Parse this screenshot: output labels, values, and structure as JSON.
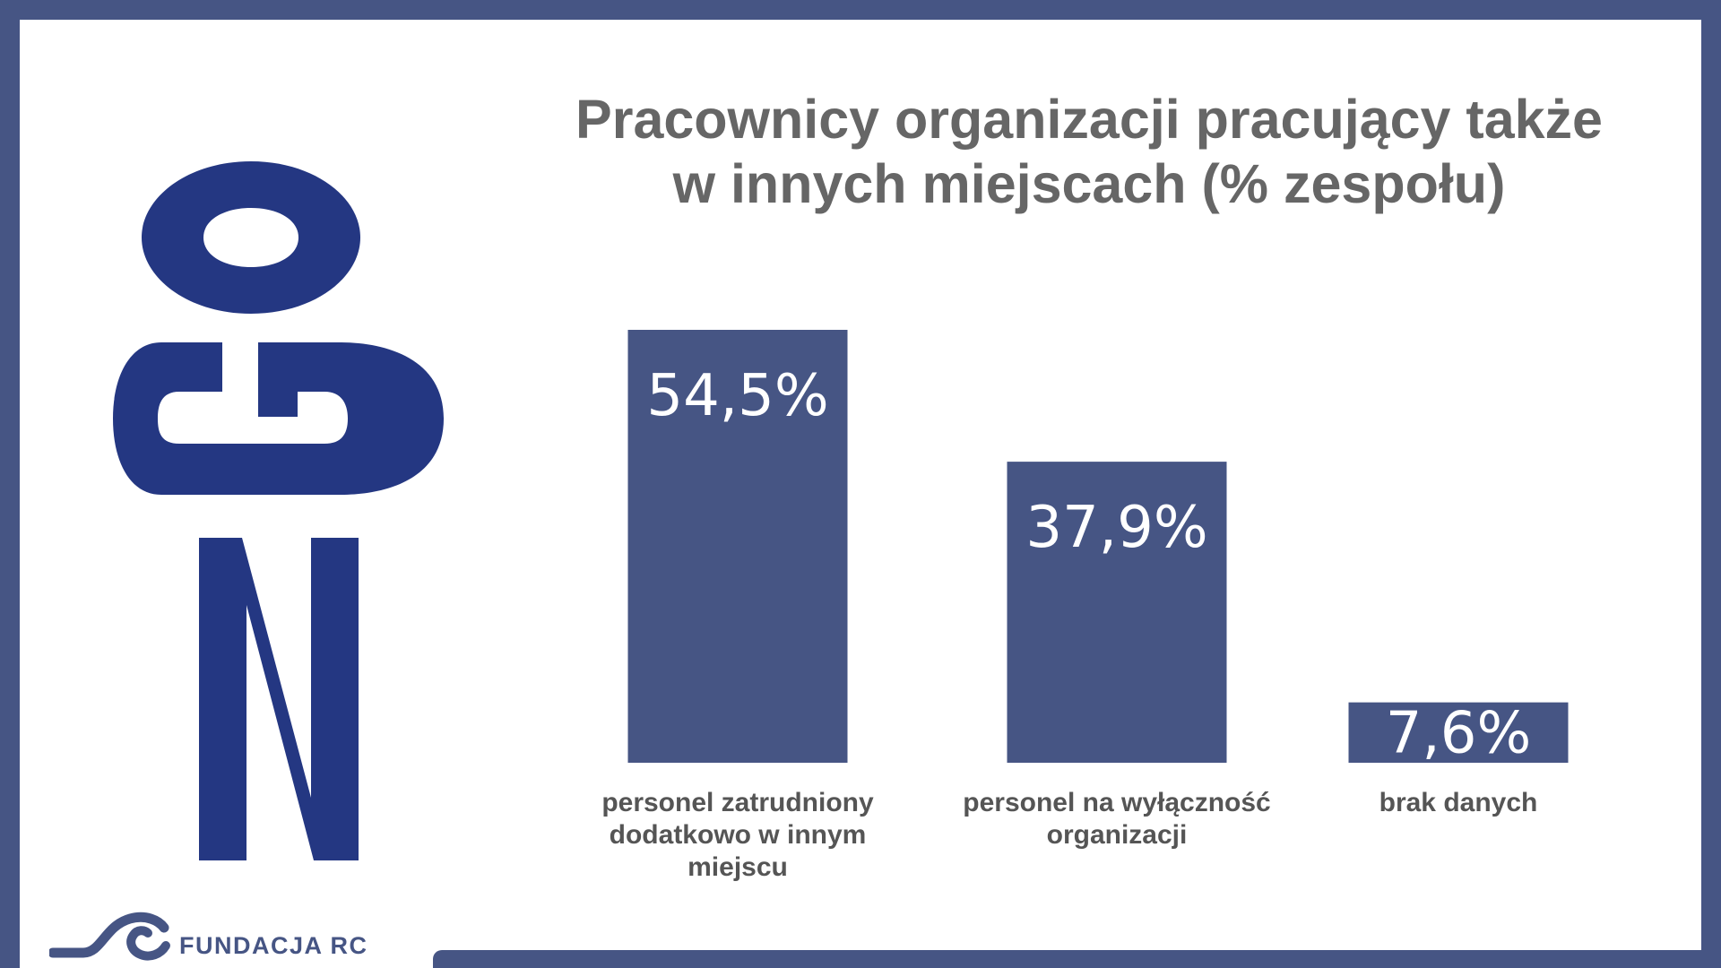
{
  "chart_data": {
    "type": "bar",
    "title": "Pracownicy organizacji pracujący także w innych miejscach (% zespołu)",
    "title_lines": [
      "Pracownicy organizacji pracujący także",
      "w innych miejscach (% zespołu)"
    ],
    "categories": [
      "personel zatrudniony dodatkowo w innym miejscu",
      "personel na wyłączność organizacji",
      "brak danych"
    ],
    "values": [
      54.5,
      37.9,
      7.6
    ],
    "data_labels": [
      "54,5%",
      "37,9%",
      "7,6%"
    ],
    "ylim": [
      0,
      54.5
    ],
    "grid": false,
    "bar_color": "#465584"
  },
  "logo": {
    "icon": "ngo-vertical-logo",
    "color": "#243782"
  },
  "footer": {
    "brand": "FUNDACJA RC",
    "icon": "wave-c-icon"
  },
  "colors": {
    "frame": "#465584",
    "title": "#666666",
    "labels": "#555555"
  }
}
